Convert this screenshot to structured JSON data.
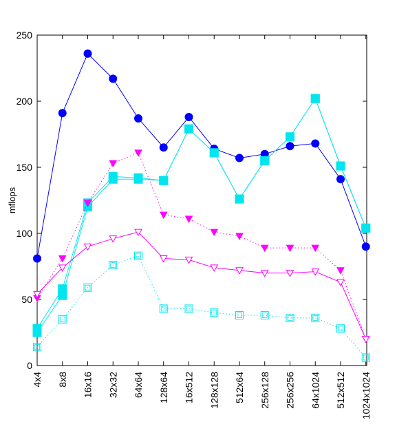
{
  "chart_data": {
    "type": "line",
    "title": "",
    "xlabel": "",
    "ylabel": "mflops",
    "ylim": [
      0,
      250
    ],
    "yticks": [
      0,
      50,
      100,
      150,
      200,
      250
    ],
    "grid": false,
    "legend": "none",
    "categories": [
      "4x4",
      "8x8",
      "16x16",
      "32x32",
      "64x64",
      "128x64",
      "16x512",
      "128x128",
      "512x64",
      "256x128",
      "256x256",
      "64x1024",
      "512x512",
      "1024x1024"
    ],
    "series": [
      {
        "color": "#0000ff",
        "marker": "circle-filled",
        "dash": "solid",
        "values": [
          81,
          191,
          236,
          217,
          187,
          165,
          188,
          164,
          157,
          160,
          166,
          168,
          141,
          90
        ]
      },
      {
        "color": "#00e5ee",
        "marker": "square-filled",
        "dash": "solid",
        "values": [
          25,
          53,
          120,
          141,
          141,
          140,
          179,
          161,
          126,
          155,
          173,
          202,
          151,
          104
        ]
      },
      {
        "color": "#00e5ee",
        "marker": "square-filled",
        "dash": "solid",
        "values": [
          28,
          58,
          123,
          143,
          142,
          140,
          179,
          161,
          126,
          155,
          173,
          202,
          151,
          104
        ]
      },
      {
        "color": "#ff00ff",
        "marker": "triangle-down-filled",
        "dash": "dotted",
        "values": [
          51,
          81,
          123,
          153,
          161,
          114,
          111,
          101,
          98,
          89,
          89,
          89,
          72,
          20
        ]
      },
      {
        "color": "#ff00ff",
        "marker": "triangle-down-open",
        "dash": "solid",
        "values": [
          54,
          74,
          90,
          96,
          101,
          81,
          80,
          74,
          72,
          70,
          70,
          71,
          63,
          20
        ]
      },
      {
        "color": "#00e5ee",
        "marker": "square-open",
        "dash": "dotted",
        "values": [
          14,
          35,
          59,
          76,
          83,
          43,
          43,
          40,
          38,
          38,
          36,
          36,
          28,
          6
        ]
      }
    ]
  }
}
